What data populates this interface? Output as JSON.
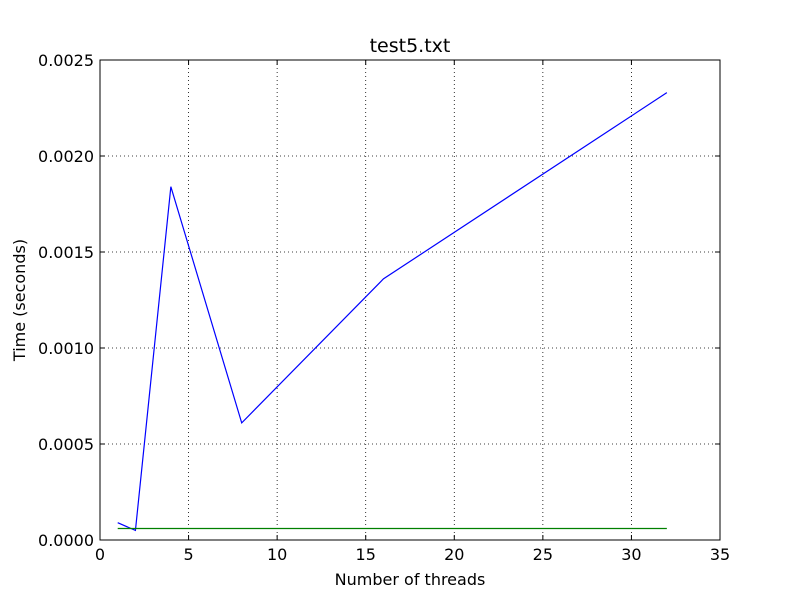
{
  "chart_data": {
    "type": "line",
    "title": "test5.txt",
    "xlabel": "Number of threads",
    "ylabel": "Time (seconds)",
    "xlim": [
      0,
      35
    ],
    "ylim": [
      0,
      0.0025
    ],
    "xticks": [
      0,
      5,
      10,
      15,
      20,
      25,
      30,
      35
    ],
    "xtick_labels": [
      "0",
      "5",
      "10",
      "15",
      "20",
      "25",
      "30",
      "35"
    ],
    "yticks": [
      0,
      0.0005,
      0.001,
      0.0015,
      0.002,
      0.0025
    ],
    "ytick_labels": [
      "0.0000",
      "0.0005",
      "0.0010",
      "0.0015",
      "0.0020",
      "0.0025"
    ],
    "grid": true,
    "series": [
      {
        "color": "#0000ff",
        "x": [
          1,
          2,
          4,
          8,
          16,
          32
        ],
        "values": [
          9e-05,
          5e-05,
          0.00184,
          0.00061,
          0.00136,
          0.00233
        ]
      },
      {
        "color": "#008000",
        "x": [
          1,
          2,
          4,
          8,
          16,
          32
        ],
        "values": [
          6e-05,
          6e-05,
          6e-05,
          6e-05,
          6e-05,
          6e-05
        ]
      }
    ]
  }
}
